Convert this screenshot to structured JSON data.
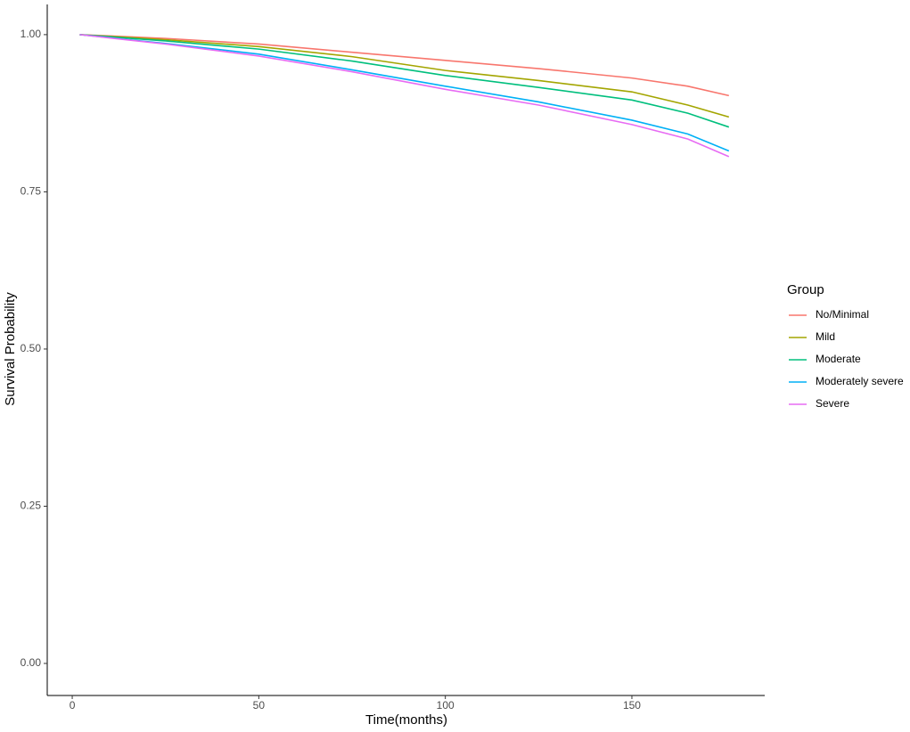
{
  "chart_data": {
    "type": "line",
    "x_label": "Time(months)",
    "y_label": "Survival Probability",
    "legend_title": "Group",
    "legend_position": "right",
    "grid": false,
    "x": [
      2,
      25,
      50,
      75,
      100,
      125,
      150,
      165,
      176
    ],
    "xlim": [
      -6.7,
      185.6
    ],
    "xticks": [
      0,
      50,
      100,
      150
    ],
    "ylim": [
      -0.051,
      1.048
    ],
    "yticks": [
      {
        "value": 0,
        "label": "0.00"
      },
      {
        "value": 0.25,
        "label": "0.25"
      },
      {
        "value": 0.5,
        "label": "0.50"
      },
      {
        "value": 0.75,
        "label": "0.75"
      },
      {
        "value": 1,
        "label": "1.00"
      }
    ],
    "series": [
      {
        "name": "No/Minimal",
        "color": "#F8766D",
        "values": [
          1,
          0.994,
          0.985,
          0.972,
          0.959,
          0.946,
          0.931,
          0.918,
          0.903
        ]
      },
      {
        "name": "Mild",
        "color": "#A3A500",
        "values": [
          1,
          0.992,
          0.981,
          0.965,
          0.943,
          0.927,
          0.909,
          0.888,
          0.869
        ]
      },
      {
        "name": "Moderate",
        "color": "#00BF7D",
        "values": [
          1,
          0.99,
          0.977,
          0.958,
          0.935,
          0.916,
          0.896,
          0.875,
          0.853
        ]
      },
      {
        "name": "Moderately severe",
        "color": "#00B0F6",
        "values": [
          1,
          0.986,
          0.969,
          0.944,
          0.918,
          0.893,
          0.864,
          0.842,
          0.815
        ]
      },
      {
        "name": "Severe",
        "color": "#E76BF3",
        "values": [
          1,
          0.985,
          0.966,
          0.941,
          0.913,
          0.888,
          0.857,
          0.834,
          0.806
        ]
      }
    ]
  }
}
